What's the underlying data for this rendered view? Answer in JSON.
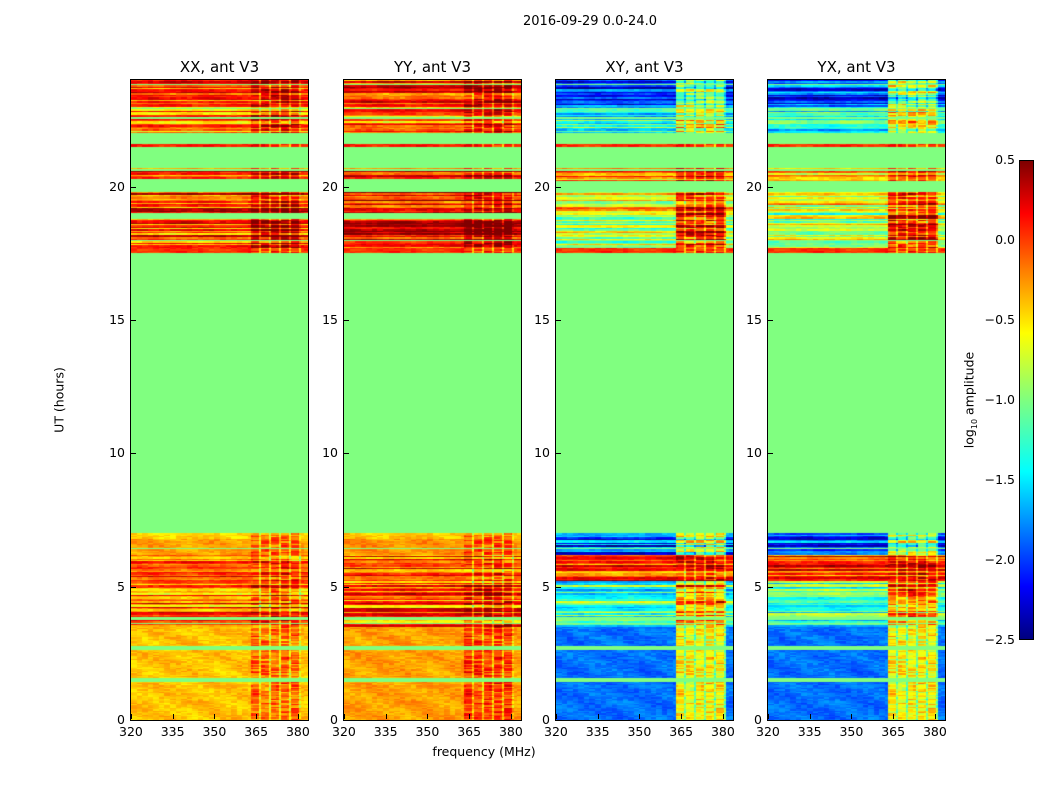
{
  "chart_data": {
    "type": "heatmap",
    "title": "2016-09-29 0.0-24.0",
    "xlabel": "frequency (MHz)",
    "ylabel": "UT (hours)",
    "xlim": [
      320,
      383.6
    ],
    "ylim": [
      0,
      24
    ],
    "xticks": [
      "320",
      "335",
      "350",
      "365",
      "380"
    ],
    "xtick_values": [
      320,
      335,
      350,
      365,
      380
    ],
    "yticks": [
      "0",
      "5",
      "10",
      "15",
      "20"
    ],
    "ytick_values": [
      0,
      5,
      10,
      15,
      20
    ],
    "colorbar": {
      "label_prefix": "log",
      "label_sub": "10",
      "label_suffix": " amplitude",
      "colormap": "jet",
      "range": [
        -2.5,
        0.5
      ],
      "ticks": [
        "0.5",
        "0.0",
        "−0.5",
        "−1.0",
        "−1.5",
        "−2.0",
        "−2.5"
      ],
      "tick_values": [
        0.5,
        0.0,
        -0.5,
        -1.0,
        -1.5,
        -2.0,
        -2.5
      ]
    },
    "flagged_value": -1.0,
    "rfi_band_mhz": [
      363,
      381
    ],
    "panels": [
      {
        "title": "XX, ant V3",
        "segments": [
          [
            0,
            3.5,
            -0.45,
            -0.2,
            0
          ],
          [
            3.5,
            5.3,
            -0.2,
            -0.05,
            1
          ],
          [
            5.3,
            6.2,
            -0.1,
            -0.05,
            1
          ],
          [
            6.2,
            6.8,
            -0.35,
            -0.15,
            0
          ],
          [
            6.8,
            7.0,
            -0.5,
            -0.3,
            0
          ],
          [
            17.5,
            17.7,
            0.0,
            0.0,
            0
          ],
          [
            17.7,
            18.8,
            -0.12,
            0.3,
            1
          ],
          [
            19.0,
            19.8,
            -0.05,
            0.2,
            1
          ],
          [
            20.3,
            20.7,
            -0.1,
            0.1,
            1
          ],
          [
            21.5,
            21.6,
            0.05,
            0.05,
            0
          ],
          [
            22.0,
            23.0,
            -0.3,
            0.0,
            1
          ],
          [
            23.0,
            24.0,
            -0.05,
            0.15,
            1
          ]
        ]
      },
      {
        "title": "YY, ant V3",
        "segments": [
          [
            0,
            3.5,
            -0.35,
            -0.05,
            0
          ],
          [
            3.5,
            5.3,
            -0.15,
            0.0,
            1
          ],
          [
            5.3,
            6.2,
            -0.05,
            0.0,
            1
          ],
          [
            6.2,
            6.8,
            -0.3,
            -0.1,
            0
          ],
          [
            6.8,
            7.0,
            -0.45,
            -0.3,
            0
          ],
          [
            17.5,
            17.7,
            0.0,
            0.0,
            0
          ],
          [
            17.7,
            18.8,
            0.0,
            0.35,
            1
          ],
          [
            19.0,
            19.8,
            0.15,
            0.35,
            1
          ],
          [
            20.3,
            20.7,
            -0.05,
            0.1,
            1
          ],
          [
            21.5,
            21.6,
            0.05,
            0.05,
            0
          ],
          [
            22.0,
            23.0,
            -0.2,
            0.05,
            1
          ],
          [
            23.0,
            24.0,
            0.0,
            0.25,
            1
          ]
        ]
      },
      {
        "title": "XY, ant V3",
        "segments": [
          [
            0,
            3.5,
            -1.8,
            -0.6,
            0
          ],
          [
            3.5,
            5.2,
            -1.2,
            -0.3,
            1
          ],
          [
            5.2,
            6.2,
            -0.05,
            0.05,
            1
          ],
          [
            6.2,
            7.0,
            -1.9,
            -0.9,
            1
          ],
          [
            17.5,
            17.7,
            0.0,
            0.0,
            0
          ],
          [
            17.7,
            19.0,
            -0.85,
            0.1,
            1
          ],
          [
            19.0,
            19.8,
            -0.55,
            0.05,
            1
          ],
          [
            20.2,
            20.7,
            -0.3,
            0.0,
            1
          ],
          [
            21.5,
            21.6,
            0.0,
            0.0,
            0
          ],
          [
            22.0,
            23.0,
            -1.3,
            -0.6,
            1
          ],
          [
            23.0,
            24.0,
            -1.9,
            -0.9,
            1
          ]
        ]
      },
      {
        "title": "YX, ant V3",
        "segments": [
          [
            0,
            3.5,
            -1.8,
            -0.6,
            0
          ],
          [
            3.5,
            5.2,
            -1.2,
            -0.3,
            1
          ],
          [
            5.2,
            6.2,
            -0.05,
            0.05,
            1
          ],
          [
            6.2,
            7.0,
            -1.9,
            -0.9,
            1
          ],
          [
            17.5,
            17.7,
            0.0,
            0.0,
            0
          ],
          [
            17.7,
            19.0,
            -0.85,
            0.1,
            1
          ],
          [
            19.0,
            19.8,
            -0.55,
            0.05,
            1
          ],
          [
            20.2,
            20.7,
            -0.3,
            0.0,
            1
          ],
          [
            21.5,
            21.6,
            0.0,
            0.0,
            0
          ],
          [
            22.0,
            23.0,
            -1.3,
            -0.6,
            1
          ],
          [
            23.0,
            24.0,
            -1.9,
            -0.9,
            1
          ]
        ]
      }
    ],
    "flag_lines_hours": [
      1.5,
      2.7,
      3.8,
      21.8
    ]
  }
}
